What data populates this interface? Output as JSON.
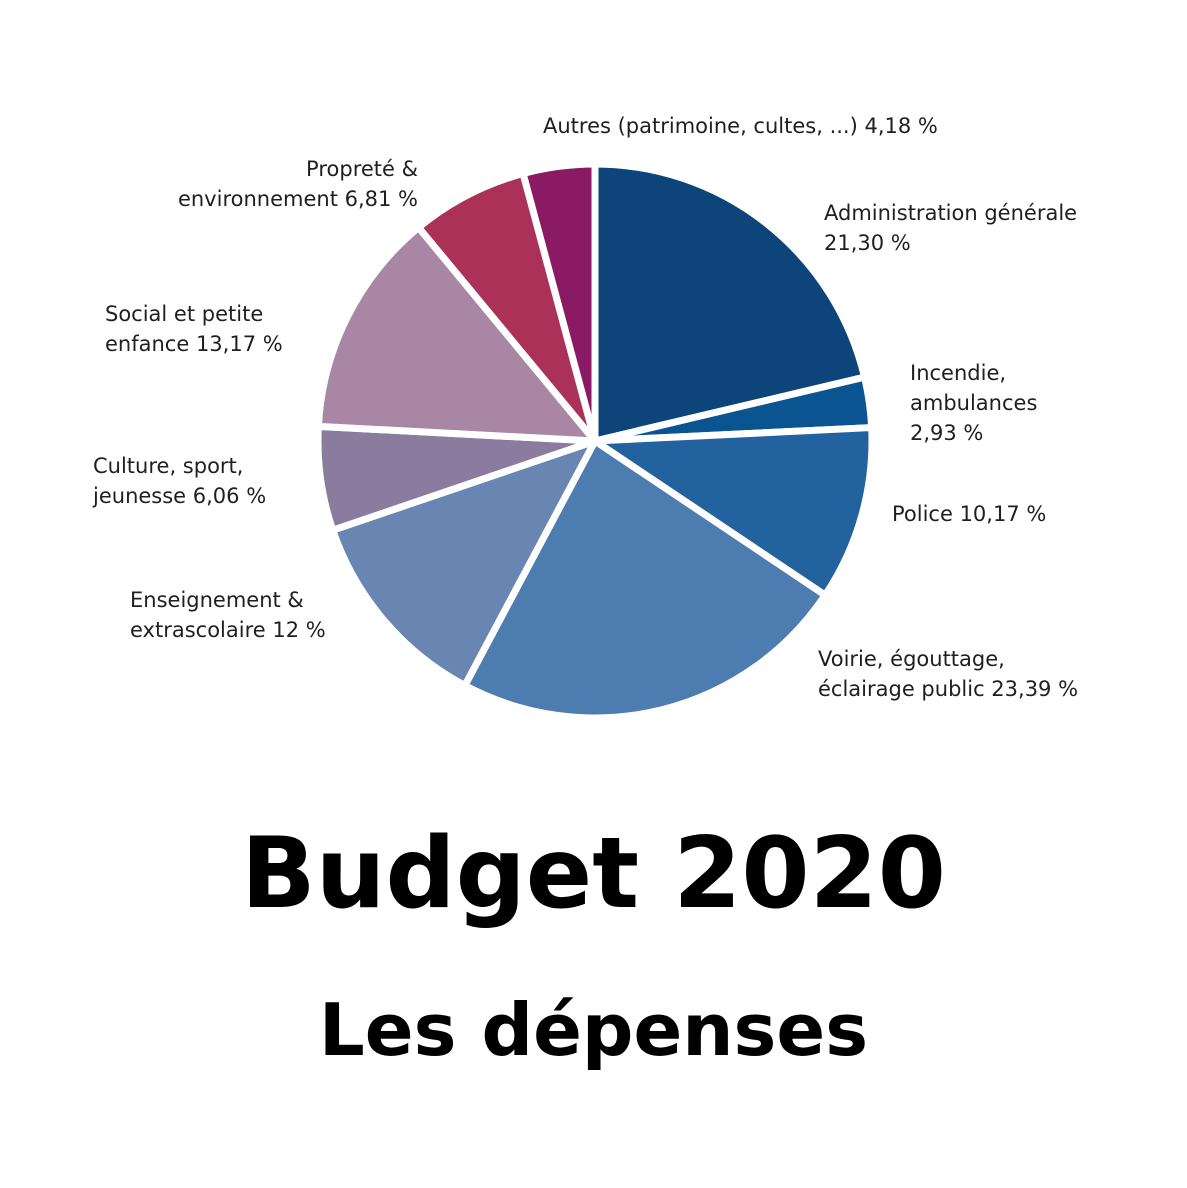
{
  "chart_data": {
    "type": "pie",
    "title": "Budget 2020",
    "subtitle": "Les dépenses",
    "slices": [
      {
        "name": "Administration générale",
        "value": 21.3,
        "label": [
          "Administration générale",
          "21,30 %"
        ],
        "color": "#0d4479"
      },
      {
        "name": "Incendie, ambulances",
        "value": 2.93,
        "label": [
          "Incendie,",
          "ambulances",
          "2,93 %"
        ],
        "color": "#0a5591"
      },
      {
        "name": "Police",
        "value": 10.17,
        "label": [
          "Police 10,17 %"
        ],
        "color": "#22629f"
      },
      {
        "name": "Voirie, égouttage, éclairage public",
        "value": 23.39,
        "label": [
          "Voirie, égouttage,",
          "éclairage public 23,39 %"
        ],
        "color": "#4d7cb1"
      },
      {
        "name": "Enseignement & extrascolaire",
        "value": 12.0,
        "label": [
          "Enseignement &",
          "extrascolaire 12 %"
        ],
        "color": "#6886b1"
      },
      {
        "name": "Culture, sport, jeunesse",
        "value": 6.06,
        "label": [
          "Culture, sport,",
          "jeunesse 6,06 %"
        ],
        "color": "#8a7b9f"
      },
      {
        "name": "Social et petite enfance",
        "value": 13.17,
        "label": [
          "Social et petite",
          "enfance 13,17 %"
        ],
        "color": "#a986a3"
      },
      {
        "name": "Propreté & environnement",
        "value": 6.81,
        "label": [
          "Propreté &",
          "environnement 6,81 %"
        ],
        "color": "#ab3158"
      },
      {
        "name": "Autres (patrimoine, cultes, ...)",
        "value": 4.18,
        "label": [
          "Autres (patrimoine, cultes, ...) 4,18 %"
        ],
        "color": "#8a1a63"
      }
    ]
  }
}
